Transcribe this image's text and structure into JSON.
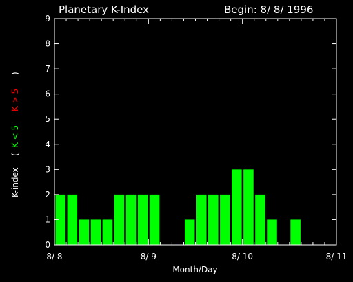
{
  "chart_data": {
    "type": "bar",
    "title": "Planetary K-Index",
    "begin_label": "Begin: 8/ 8/ 1996",
    "xlabel": "Month/Day",
    "ylabel": {
      "prefix": "K-index",
      "open": "(",
      "green_part": "K < 5",
      "red_part": "K > 5",
      "close": ")"
    },
    "ylim": [
      0,
      9
    ],
    "y_ticks": [
      "0",
      "1",
      "2",
      "3",
      "4",
      "5",
      "6",
      "7",
      "8",
      "9"
    ],
    "x_ticks": [
      "8/ 8",
      "8/ 9",
      "8/ 10",
      "8/ 11"
    ],
    "interval_hours": 3,
    "values": [
      2,
      2,
      1,
      1,
      1,
      2,
      2,
      2,
      2,
      0,
      0,
      1,
      2,
      2,
      2,
      3,
      3,
      2,
      1,
      0,
      1,
      0,
      0,
      0
    ],
    "colors": {
      "below5": "#00ff00",
      "above5": "#ff0000",
      "axes": "#ffffff",
      "background": "#000000"
    }
  }
}
